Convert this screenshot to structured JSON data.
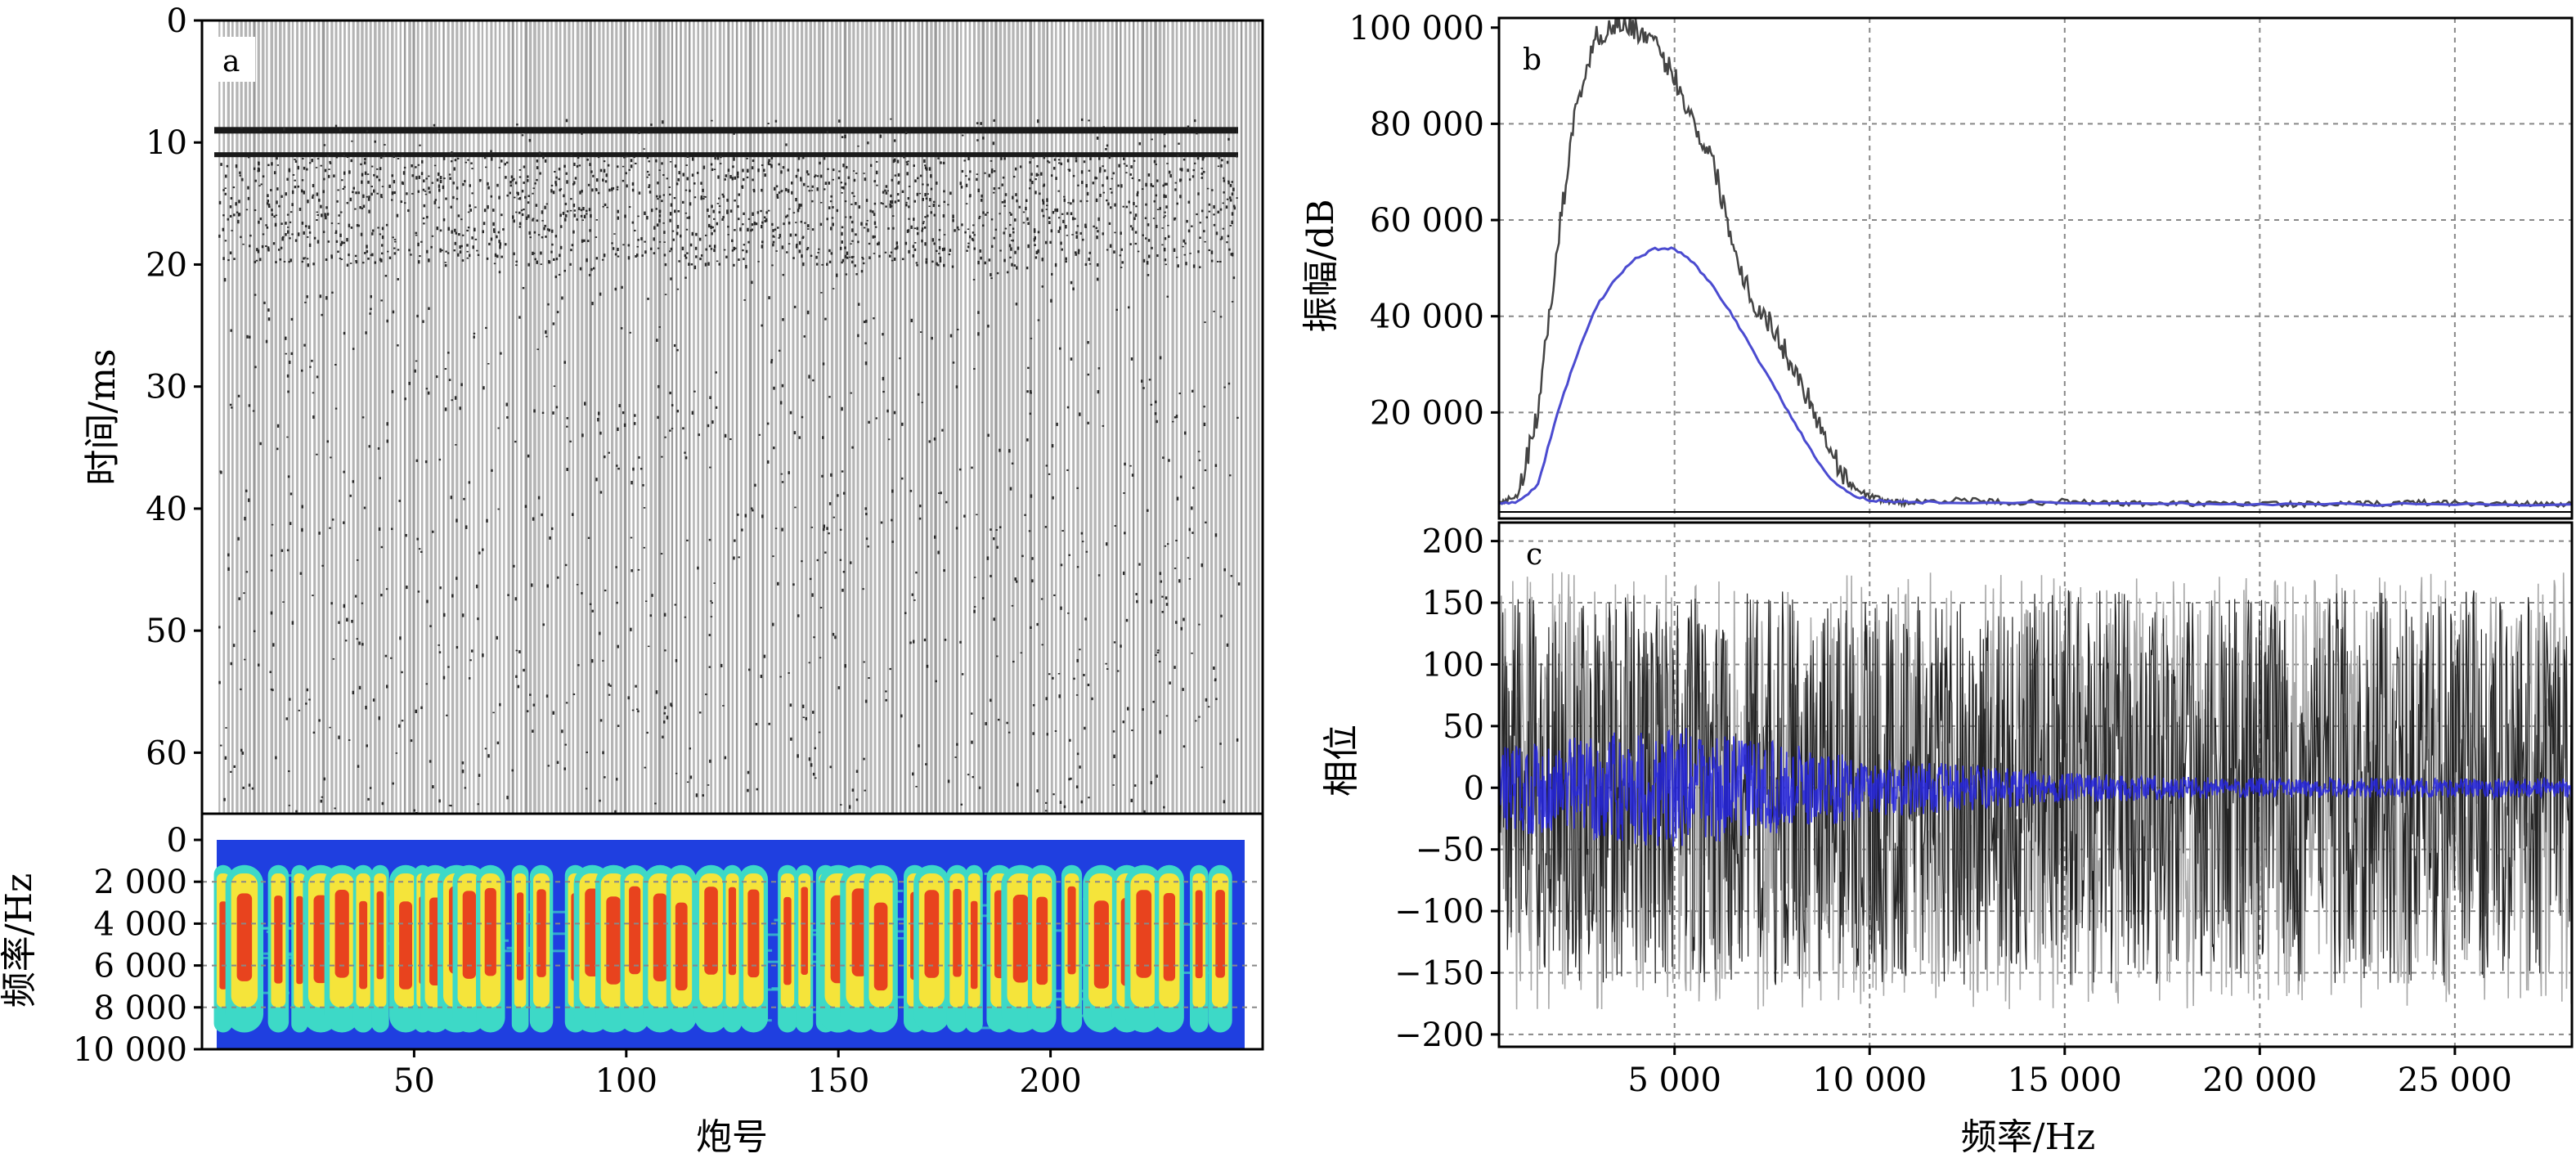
{
  "chart_data": [
    {
      "panel": "a",
      "type": "heatmap",
      "description_kind": "seismic shot gather (wiggle traces)",
      "ylabel": "时间/ms",
      "xlabel": "炮号",
      "y_ticks": [
        "0",
        "10",
        "20",
        "30",
        "40",
        "50",
        "60"
      ],
      "x_ticks": [
        "50",
        "100",
        "150",
        "200"
      ],
      "ylim": [
        0,
        65
      ],
      "xlim": [
        0,
        250
      ],
      "strong_event_times_ms": [
        9,
        11
      ],
      "trace_count": 245
    },
    {
      "panel": "a-spectrum",
      "type": "heatmap",
      "ylabel": "频率/Hz",
      "y_ticks": [
        "0",
        "2 000",
        "4 000",
        "6 000",
        "8 000",
        "10 000"
      ],
      "ylim": [
        0,
        10000
      ],
      "xlim": [
        0,
        250
      ],
      "high_energy_shots": [
        5,
        10,
        18,
        23,
        28,
        33,
        38,
        42,
        48,
        52,
        55,
        60,
        63,
        68,
        75,
        80,
        88,
        92,
        97,
        102,
        108,
        113,
        120,
        125,
        130,
        138,
        142,
        147,
        150,
        155,
        160,
        168,
        172,
        178,
        182,
        188,
        193,
        198,
        205,
        212,
        218,
        222,
        228,
        235,
        240
      ],
      "colors": {
        "low": "#1f3fe0",
        "mid": "#3dd9c7",
        "midhigh": "#f5e43a",
        "high": "#e8431e"
      }
    },
    {
      "panel": "b",
      "type": "line",
      "ylabel": "振幅/dB",
      "y_ticks": [
        "20 000",
        "40 000",
        "60 000",
        "80 000",
        "100 000"
      ],
      "ylim": [
        0,
        102000
      ],
      "xlim": [
        500,
        28000
      ],
      "series": [
        {
          "color": "#444444",
          "x": [
            500,
            1000,
            1500,
            2000,
            2500,
            3000,
            3500,
            4000,
            4500,
            5000,
            5500,
            6000,
            6500,
            7000,
            7500,
            8000,
            8500,
            9000,
            9500,
            10000,
            10500,
            11000,
            12000,
            13000,
            14000,
            15000,
            16000,
            17000,
            18000,
            19000,
            20000,
            21000,
            22000,
            23000,
            24000,
            25000,
            26000,
            27000,
            28000
          ],
          "y": [
            1000,
            3000,
            20000,
            55000,
            85000,
            98000,
            101000,
            100000,
            96000,
            90000,
            80000,
            72000,
            55000,
            43000,
            38000,
            30000,
            22000,
            12000,
            5000,
            2500,
            1500,
            1200,
            1800,
            1500,
            1200,
            1500,
            1200,
            1000,
            1100,
            900,
            1000,
            900,
            900,
            1000,
            1300,
            1200,
            1000,
            900,
            1000
          ]
        },
        {
          "color": "#4b4bd0",
          "x": [
            500,
            1000,
            1500,
            2000,
            2500,
            3000,
            3500,
            4000,
            4500,
            5000,
            5500,
            6000,
            6500,
            7000,
            7500,
            8000,
            8500,
            9000,
            9500,
            10000,
            10500,
            11000,
            12000,
            14000,
            16000,
            18000,
            20000,
            22000,
            24000,
            26000,
            28000
          ],
          "y": [
            1000,
            1500,
            5000,
            20000,
            32000,
            42000,
            48000,
            52000,
            54000,
            54000,
            51000,
            46000,
            40000,
            33000,
            26000,
            19000,
            12000,
            6000,
            3000,
            1800,
            1500,
            1400,
            1300,
            1200,
            1100,
            1000,
            900,
            900,
            900,
            900,
            900
          ]
        }
      ]
    },
    {
      "panel": "c",
      "type": "line",
      "ylabel": "相位",
      "xlabel": "频率/Hz",
      "y_ticks": [
        "200",
        "150",
        "100",
        "50",
        "0",
        "−50",
        "−100",
        "−150",
        "−200"
      ],
      "x_ticks": [
        "5 000",
        "10 000",
        "15 000",
        "20 000",
        "25 000"
      ],
      "ylim": [
        -210,
        215
      ],
      "xlim": [
        500,
        28000
      ],
      "series": [
        {
          "color": "#a8a8a8",
          "envelope": [
            -180,
            175
          ]
        },
        {
          "color": "#222222",
          "envelope": [
            -160,
            160
          ]
        },
        {
          "color": "#2424e0",
          "envelope_x": [
            500,
            5000,
            10000,
            15000,
            20000,
            28000
          ],
          "envelope_half": [
            35,
            50,
            25,
            12,
            8,
            8
          ]
        }
      ]
    }
  ],
  "panel_labels": {
    "a": "a",
    "b": "b",
    "c": "c"
  }
}
